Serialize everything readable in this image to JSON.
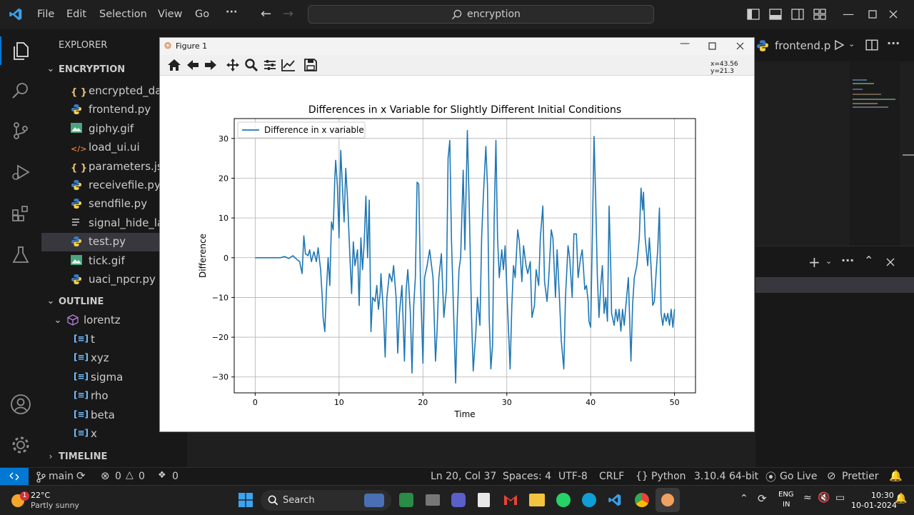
{
  "titlebar": {
    "menus": [
      "File",
      "Edit",
      "Selection",
      "View",
      "Go",
      "···"
    ],
    "search_text": "encryption"
  },
  "sidebar": {
    "explorer_title": "EXPLORER",
    "folder_name": "ENCRYPTION",
    "files": [
      {
        "name": "encrypted_dat",
        "icon": "json-icon"
      },
      {
        "name": "frontend.py",
        "icon": "python-icon"
      },
      {
        "name": "giphy.gif",
        "icon": "image-icon"
      },
      {
        "name": "load_ui.ui",
        "icon": "xml-icon"
      },
      {
        "name": "parameters.jso",
        "icon": "json-icon"
      },
      {
        "name": "receivefile.py",
        "icon": "python-icon"
      },
      {
        "name": "sendfile.py",
        "icon": "python-icon"
      },
      {
        "name": "signal_hide_lab",
        "icon": "text-icon"
      },
      {
        "name": "test.py",
        "icon": "python-icon",
        "selected": true
      },
      {
        "name": "tick.gif",
        "icon": "image-icon"
      },
      {
        "name": "uaci_npcr.py",
        "icon": "python-icon"
      }
    ],
    "outline_title": "OUTLINE",
    "outline_root": "lorentz",
    "outline_items": [
      "t",
      "xyz",
      "sigma",
      "rho",
      "beta",
      "x"
    ],
    "timeline_title": "TIMELINE"
  },
  "editor": {
    "tab_label": "frontend.p"
  },
  "figure": {
    "window_title": "Figure 1",
    "coords_text": "x=43.56 y=21.3"
  },
  "statusbar": {
    "branch": "main",
    "errors": "0",
    "warnings": "0",
    "ports": "0",
    "cursor": "Ln 20, Col 37",
    "spaces": "Spaces: 4",
    "encoding": "UTF-8",
    "eol": "CRLF",
    "language": "Python",
    "interpreter": "3.10.4 64-bit",
    "golive": "Go Live",
    "prettier": "Prettier"
  },
  "taskbar": {
    "weather_temp": "22°C",
    "weather_desc": "Partly sunny",
    "search_label": "Search",
    "lang_top": "ENG",
    "lang_bottom": "IN",
    "time": "10:30",
    "date": "10-01-2024"
  },
  "chart_data": {
    "type": "line",
    "title": "Differences in x Variable for Slightly Different Initial Conditions",
    "xlabel": "Time",
    "ylabel": "Difference",
    "xlim": [
      -2.5,
      52.5
    ],
    "ylim": [
      -34,
      35
    ],
    "xticks": [
      0,
      10,
      20,
      30,
      40,
      50
    ],
    "yticks": [
      -30,
      -20,
      -10,
      0,
      10,
      20,
      30
    ],
    "grid": true,
    "legend_position": "top-left",
    "series": [
      {
        "name": "Difference in x variable",
        "color": "#1f77b4",
        "points": [
          [
            0,
            0
          ],
          [
            3,
            0
          ],
          [
            3.5,
            0.3
          ],
          [
            4,
            -0.2
          ],
          [
            4.5,
            0.5
          ],
          [
            5,
            -0.5
          ],
          [
            5.3,
            -1
          ],
          [
            5.6,
            -4
          ],
          [
            5.8,
            5.5
          ],
          [
            6,
            1
          ],
          [
            6.3,
            0.5
          ],
          [
            6.5,
            2
          ],
          [
            6.7,
            -1
          ],
          [
            7,
            1.5
          ],
          [
            7.3,
            -1
          ],
          [
            7.5,
            2.5
          ],
          [
            7.8,
            -3
          ],
          [
            8,
            -10
          ],
          [
            8.1,
            -15
          ],
          [
            8.3,
            -18.6
          ],
          [
            8.5,
            -8
          ],
          [
            8.7,
            0
          ],
          [
            8.9,
            -7
          ],
          [
            9.1,
            9
          ],
          [
            9.3,
            7
          ],
          [
            9.5,
            20
          ],
          [
            9.6,
            24.5
          ],
          [
            9.8,
            18
          ],
          [
            10,
            5
          ],
          [
            10.1,
            18
          ],
          [
            10.2,
            27
          ],
          [
            10.4,
            18
          ],
          [
            10.6,
            9
          ],
          [
            10.8,
            22.5
          ],
          [
            11,
            15
          ],
          [
            11.3,
            0
          ],
          [
            11.5,
            -9
          ],
          [
            11.7,
            4
          ],
          [
            11.9,
            -2
          ],
          [
            12.2,
            2
          ],
          [
            12.4,
            -12
          ],
          [
            12.6,
            5
          ],
          [
            12.8,
            -3
          ],
          [
            13,
            4
          ],
          [
            13.2,
            15.5
          ],
          [
            13.4,
            0
          ],
          [
            13.6,
            14.5
          ],
          [
            13.8,
            -18.6
          ],
          [
            14,
            -10
          ],
          [
            14.3,
            -11
          ],
          [
            14.5,
            -7
          ],
          [
            14.7,
            -13
          ],
          [
            14.9,
            -9
          ],
          [
            15,
            -4
          ],
          [
            15.3,
            -14
          ],
          [
            15.5,
            -25
          ],
          [
            15.7,
            -10
          ],
          [
            16,
            -4
          ],
          [
            16.3,
            -6
          ],
          [
            16.5,
            -2
          ],
          [
            16.8,
            -10
          ],
          [
            17,
            -24
          ],
          [
            17.2,
            -14
          ],
          [
            17.5,
            -7
          ],
          [
            17.8,
            -26
          ],
          [
            18,
            -8
          ],
          [
            18.2,
            -3
          ],
          [
            18.5,
            -14
          ],
          [
            18.7,
            -29
          ],
          [
            18.9,
            -12
          ],
          [
            19.1,
            -5
          ],
          [
            19.3,
            19
          ],
          [
            19.5,
            18.5
          ],
          [
            19.7,
            -5
          ],
          [
            20,
            -26.5
          ],
          [
            20.2,
            -5
          ],
          [
            20.5,
            -2
          ],
          [
            20.8,
            2
          ],
          [
            21,
            -1.5
          ],
          [
            21.2,
            -5
          ],
          [
            21.5,
            -26
          ],
          [
            21.7,
            -18
          ],
          [
            21.9,
            -5
          ],
          [
            22.2,
            1
          ],
          [
            22.5,
            -15
          ],
          [
            22.8,
            -8
          ],
          [
            23,
            25
          ],
          [
            23.2,
            29.5
          ],
          [
            23.4,
            5
          ],
          [
            23.6,
            -10
          ],
          [
            23.9,
            -31.5
          ],
          [
            24.1,
            -15
          ],
          [
            24.3,
            -3
          ],
          [
            24.5,
            0
          ],
          [
            24.8,
            22
          ],
          [
            25,
            2
          ],
          [
            25.3,
            32
          ],
          [
            25.5,
            15
          ],
          [
            25.8,
            -15
          ],
          [
            26,
            -28.5
          ],
          [
            26.3,
            -19
          ],
          [
            26.5,
            -10
          ],
          [
            26.8,
            -17
          ],
          [
            27,
            5
          ],
          [
            27.2,
            15
          ],
          [
            27.5,
            28
          ],
          [
            27.7,
            18
          ],
          [
            27.9,
            -15
          ],
          [
            28.1,
            -28
          ],
          [
            28.3,
            -22
          ],
          [
            28.5,
            10
          ],
          [
            28.7,
            29.5
          ],
          [
            28.9,
            5
          ],
          [
            29.1,
            -5
          ],
          [
            29.4,
            2
          ],
          [
            29.6,
            -3
          ],
          [
            29.8,
            3
          ],
          [
            30.1,
            -13
          ],
          [
            30.4,
            -28
          ],
          [
            30.6,
            -12
          ],
          [
            30.8,
            -2
          ],
          [
            31,
            -5
          ],
          [
            31.3,
            7
          ],
          [
            31.5,
            4
          ],
          [
            31.8,
            -6
          ],
          [
            32,
            3
          ],
          [
            32.3,
            -2
          ],
          [
            32.5,
            -4
          ],
          [
            32.8,
            -1
          ],
          [
            33,
            -15
          ],
          [
            33.3,
            -12
          ],
          [
            33.5,
            -3
          ],
          [
            33.8,
            -7
          ],
          [
            34,
            5
          ],
          [
            34.3,
            13
          ],
          [
            34.5,
            -6
          ],
          [
            34.8,
            -11
          ],
          [
            35,
            -5
          ],
          [
            35.3,
            7
          ],
          [
            35.5,
            5
          ],
          [
            35.8,
            -10
          ],
          [
            36,
            2
          ],
          [
            36.3,
            -11
          ],
          [
            36.5,
            -21
          ],
          [
            36.8,
            -28
          ],
          [
            37,
            -10
          ],
          [
            37.3,
            3
          ],
          [
            37.5,
            0
          ],
          [
            37.8,
            -10
          ],
          [
            38,
            6
          ],
          [
            38.3,
            6
          ],
          [
            38.5,
            -5
          ],
          [
            38.8,
            0
          ],
          [
            39,
            2
          ],
          [
            39.3,
            -8
          ],
          [
            39.5,
            -7
          ],
          [
            39.7,
            -11
          ],
          [
            39.8,
            -16
          ],
          [
            40,
            -17.5
          ],
          [
            40.2,
            5
          ],
          [
            40.4,
            30.5
          ],
          [
            40.6,
            15
          ],
          [
            40.8,
            -5
          ],
          [
            41,
            -15
          ],
          [
            41.2,
            -7
          ],
          [
            41.4,
            -2
          ],
          [
            41.6,
            -14
          ],
          [
            41.8,
            -10
          ],
          [
            42,
            -16
          ],
          [
            42.2,
            13
          ],
          [
            42.4,
            -3
          ],
          [
            42.5,
            -14
          ],
          [
            42.8,
            -17
          ],
          [
            43,
            -13
          ],
          [
            43.2,
            -16
          ],
          [
            43.4,
            -13
          ],
          [
            43.6,
            -18.5
          ],
          [
            43.8,
            -13
          ],
          [
            44,
            -17
          ],
          [
            44.2,
            -12
          ],
          [
            44.5,
            -5
          ],
          [
            44.8,
            -26
          ],
          [
            45,
            -12
          ],
          [
            45.2,
            -5
          ],
          [
            45.5,
            -2
          ],
          [
            45.8,
            5
          ],
          [
            46,
            17.5
          ],
          [
            46.2,
            12
          ],
          [
            46.3,
            16.5
          ],
          [
            46.5,
            5
          ],
          [
            46.8,
            -2
          ],
          [
            47,
            5
          ],
          [
            47.2,
            -2
          ],
          [
            47.4,
            -12
          ],
          [
            47.6,
            -11
          ],
          [
            47.8,
            -4
          ],
          [
            48,
            2
          ],
          [
            48.2,
            12.5
          ],
          [
            48.4,
            -14
          ],
          [
            48.6,
            -17
          ],
          [
            48.8,
            -14
          ],
          [
            49,
            -16
          ],
          [
            49.2,
            -14
          ],
          [
            49.4,
            -17
          ],
          [
            49.6,
            -13
          ],
          [
            49.8,
            -17.5
          ],
          [
            50,
            -13
          ]
        ]
      }
    ]
  }
}
